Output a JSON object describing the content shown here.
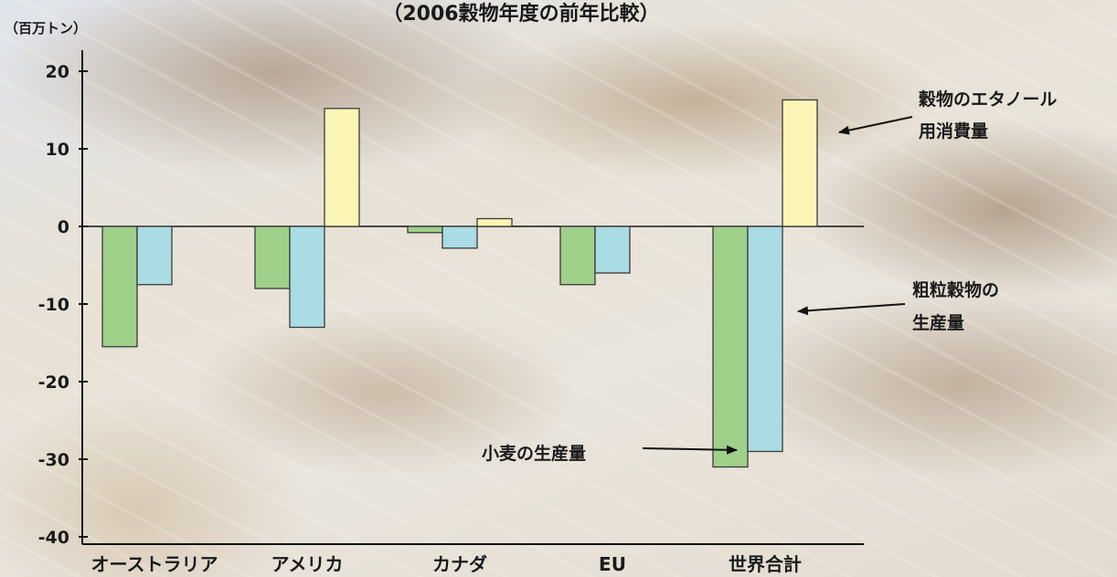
{
  "chart_data": {
    "type": "bar",
    "title": "（2006穀物年度の前年比較）",
    "ylabel": "（百万トン）",
    "ylim": [
      -40,
      20
    ],
    "yticks": [
      20,
      10,
      0,
      -10,
      -20,
      -30,
      -40
    ],
    "categories": [
      "オーストラリア",
      "アメリカ",
      "カナダ",
      "EU",
      "世界合計"
    ],
    "series": [
      {
        "name": "小麦の生産量",
        "color": "#9fd08a",
        "values": [
          -15.5,
          -8,
          -0.8,
          -7.5,
          -31
        ]
      },
      {
        "name": "粗粒穀物の生産量",
        "color": "#a9dce3",
        "values": [
          -7.5,
          -13,
          -2.8,
          -6,
          -29
        ]
      },
      {
        "name": "穀物のエタノール用消費量",
        "color": "#fbf5b5",
        "values": [
          0,
          15.2,
          1,
          0,
          16.3
        ]
      }
    ],
    "annotations": {
      "ethanol": [
        "穀物のエタノール",
        "用消費量"
      ],
      "coarse": [
        "粗粒穀物の",
        "生産量"
      ],
      "wheat": "小麦の生産量"
    },
    "grid": false,
    "legend": "none"
  }
}
